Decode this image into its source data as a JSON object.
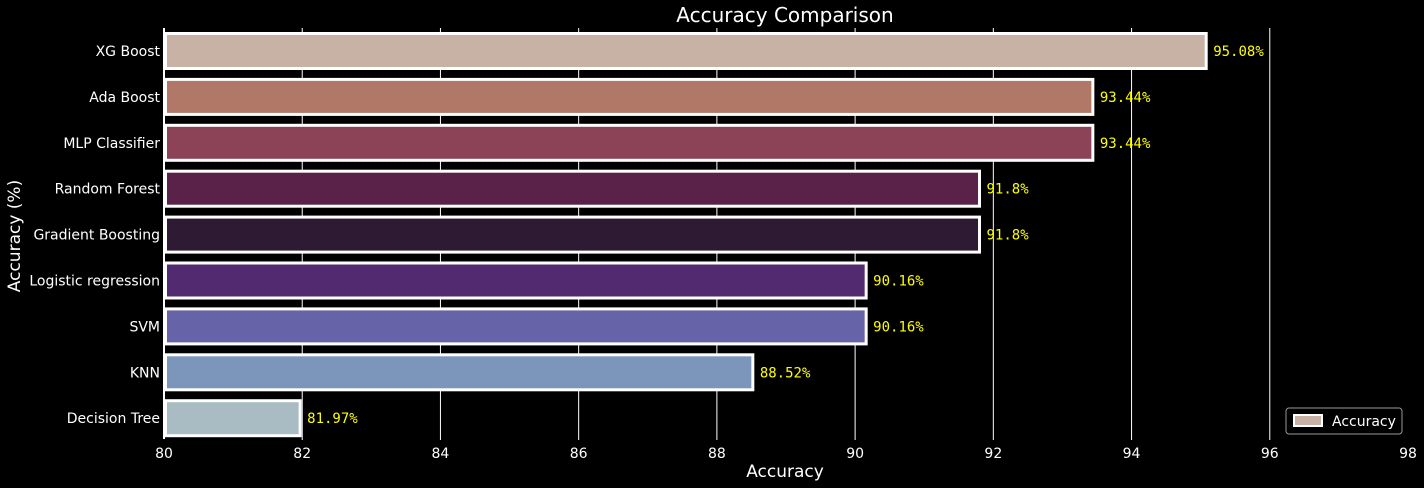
{
  "chart_data": {
    "type": "bar",
    "orientation": "horizontal",
    "title": "Accuracy Comparison",
    "xlabel": "Accuracy",
    "ylabel": "Accuracy (%)",
    "xlim": [
      80,
      98
    ],
    "x_ticks": [
      "80",
      "82",
      "84",
      "86",
      "88",
      "90",
      "92",
      "94",
      "96",
      "98"
    ],
    "grid": "vertical",
    "legend": {
      "label": "Accuracy",
      "placement": "bottom-right"
    },
    "categories": [
      "XG Boost",
      "Ada Boost",
      "MLP Classifier",
      "Random Forest",
      "Gradient Boosting",
      "Logistic regression",
      "SVM",
      "KNN",
      "Decision Tree"
    ],
    "values": [
      95.08,
      93.44,
      93.44,
      91.8,
      91.8,
      90.16,
      90.16,
      88.52,
      81.97
    ],
    "value_labels": [
      "95.08%",
      "93.44%",
      "93.44%",
      "91.8%",
      "91.8%",
      "90.16%",
      "90.16%",
      "88.52%",
      "81.97%"
    ],
    "colors": [
      "#c8b2a5",
      "#b17767",
      "#8c4357",
      "#5a2248",
      "#2e1a33",
      "#522a70",
      "#6763a8",
      "#7b96ba",
      "#a9bcc4"
    ],
    "background": "#000000",
    "bar_edge_color": "#ffffff",
    "label_color": "#ffff00"
  }
}
